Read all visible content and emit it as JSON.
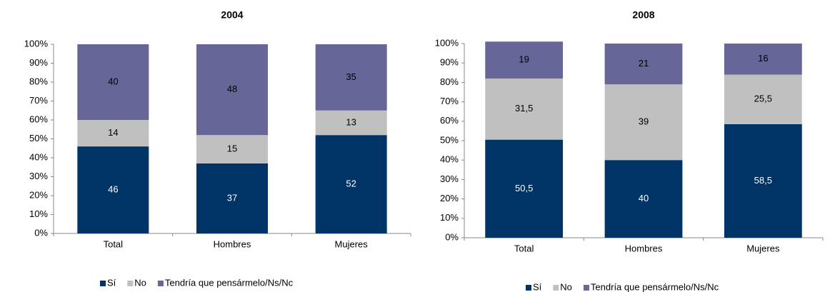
{
  "chart_data": [
    {
      "type": "bar",
      "stacked": true,
      "title": "2004",
      "categories": [
        "Total",
        "Hombres",
        "Mujeres"
      ],
      "series": [
        {
          "name": "Sí",
          "color": "#003366",
          "values": [
            46,
            37,
            52
          ]
        },
        {
          "name": "No",
          "color": "#c0c0c0",
          "values": [
            14,
            15,
            13
          ]
        },
        {
          "name": "Tendría que pensármelo/Ns/Nc",
          "color": "#666699",
          "values": [
            40,
            48,
            35
          ]
        }
      ],
      "ylim": [
        0,
        100
      ],
      "yticks": [
        {
          "value": 0,
          "label": "0%"
        },
        {
          "value": 10,
          "label": "10%"
        },
        {
          "value": 20,
          "label": "20%"
        },
        {
          "value": 30,
          "label": "30%"
        },
        {
          "value": 40,
          "label": "40%"
        },
        {
          "value": 50,
          "label": "50%"
        },
        {
          "value": 60,
          "label": "60%"
        },
        {
          "value": 70,
          "label": "70%"
        },
        {
          "value": 80,
          "label": "80%"
        },
        {
          "value": 90,
          "label": "90%"
        },
        {
          "value": 100,
          "label": "100%"
        }
      ],
      "grid": false,
      "legend": "bottom"
    },
    {
      "type": "bar",
      "stacked": true,
      "title": "2008",
      "categories": [
        "Total",
        "Hombres",
        "Mujeres"
      ],
      "series": [
        {
          "name": "Sí",
          "color": "#003366",
          "values": [
            50.5,
            40,
            58.5
          ],
          "value_labels": [
            "50,5",
            "40",
            "58,5"
          ]
        },
        {
          "name": "No",
          "color": "#c0c0c0",
          "values": [
            31.5,
            39,
            25.5
          ],
          "value_labels": [
            "31,5",
            "39",
            "25,5"
          ]
        },
        {
          "name": "Tendría que pensármelo/Ns/Nc",
          "color": "#666699",
          "values": [
            19,
            21,
            16
          ],
          "value_labels": [
            "19",
            "21",
            "16"
          ]
        }
      ],
      "ylim": [
        0,
        100
      ],
      "yticks": [
        {
          "value": 0,
          "label": "0%"
        },
        {
          "value": 10,
          "label": "10%"
        },
        {
          "value": 20,
          "label": "20%"
        },
        {
          "value": 30,
          "label": "30%"
        },
        {
          "value": 40,
          "label": "40%"
        },
        {
          "value": 50,
          "label": "50%"
        },
        {
          "value": 60,
          "label": "60%"
        },
        {
          "value": 70,
          "label": "70%"
        },
        {
          "value": 80,
          "label": "80%"
        },
        {
          "value": 90,
          "label": "90%"
        },
        {
          "value": 100,
          "label": "100%"
        }
      ],
      "grid": false,
      "legend": "bottom"
    }
  ]
}
